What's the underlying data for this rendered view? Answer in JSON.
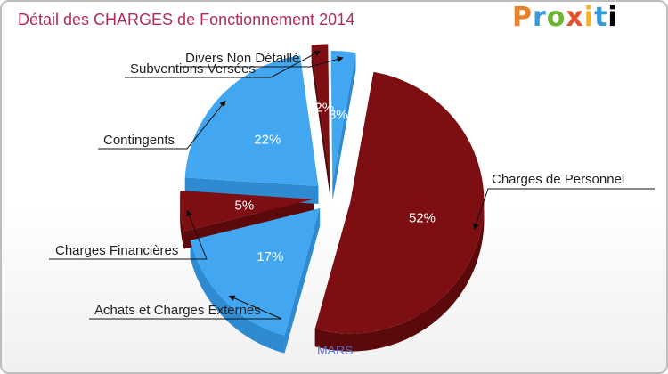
{
  "title": "Détail des CHARGES de Fonctionnement 2014",
  "logo": {
    "text": "Proxiti",
    "letters": [
      "P",
      "r",
      "o",
      "x",
      "i",
      "t",
      "i"
    ]
  },
  "city": "MARS",
  "colors": {
    "blue": "#42a7f0",
    "blue_side": "#2f8bd1",
    "maroon": "#7d0f12",
    "maroon_side": "#5b090b",
    "title": "#b02c5e",
    "city": "#5b6fd6"
  },
  "chart_data": {
    "type": "pie",
    "title": "Détail des CHARGES de Fonctionnement 2014",
    "style": "3d-exploded",
    "categories": [
      "Charges de Personnel",
      "Achats et Charges Externes",
      "Charges Financières",
      "Contingents",
      "Subventions Versées",
      "Divers Non Détaillé"
    ],
    "values": [
      52,
      17,
      5,
      22,
      2,
      3
    ],
    "value_labels": [
      "52%",
      "17%",
      "5%",
      "22%",
      "2%",
      "3%"
    ],
    "slice_colors": [
      "maroon",
      "blue",
      "maroon",
      "blue",
      "maroon",
      "blue"
    ],
    "legend": "none"
  }
}
